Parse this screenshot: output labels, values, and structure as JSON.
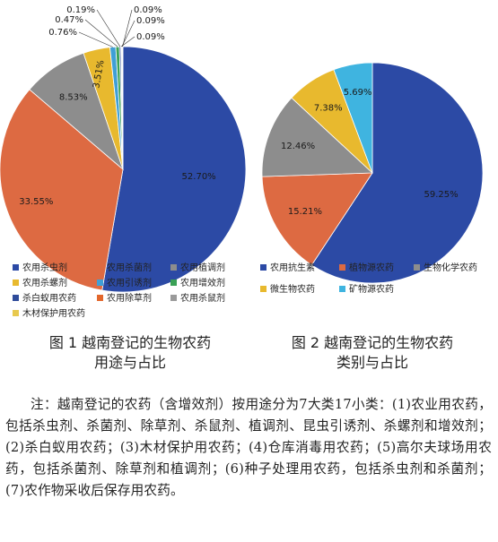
{
  "chart_data": [
    {
      "type": "pie",
      "title": "图 1 越南登记的生物农药",
      "subtitle": "用途与占比",
      "categories": [
        "农用杀虫剂",
        "农用杀菌剂",
        "农用植调剂",
        "农用杀螺剂",
        "农用引诱剂",
        "农用增效剂",
        "杀白蚁用农药",
        "农用除草剂",
        "农用杀鼠剂",
        "木材保护用农药"
      ],
      "values": [
        52.7,
        33.55,
        8.53,
        3.51,
        0.76,
        0.47,
        0.19,
        0.09,
        0.09,
        0.09
      ],
      "labels": [
        "52.70%",
        "33.55%",
        "8.53%",
        "3.51%",
        "0.76%",
        "0.47%",
        "0.19%",
        "0.09%",
        "0.09%",
        "0.09%"
      ],
      "colors": [
        "#2c4aa5",
        "#dd6a42",
        "#8d8d8d",
        "#e8b92e",
        "#3f9fd6",
        "#3aa156",
        "#2f4c9a",
        "#e3672c",
        "#9a9a9a",
        "#e8c94e"
      ],
      "legend_position": "bottom"
    },
    {
      "type": "pie",
      "title": "图 2 越南登记的生物农药",
      "subtitle": "类别与占比",
      "categories": [
        "农用抗生素",
        "植物源农药",
        "生物化学农药",
        "微生物农药",
        "矿物源农药"
      ],
      "values": [
        59.25,
        15.21,
        12.46,
        7.38,
        5.69
      ],
      "labels": [
        "59.25%",
        "15.21%",
        "12.46%",
        "7.38%",
        "5.69%"
      ],
      "colors": [
        "#2c4aa5",
        "#dd6a42",
        "#8d8d8d",
        "#e8b92e",
        "#3fb4e0"
      ],
      "legend_position": "bottom"
    }
  ],
  "note": "注：越南登记的农药（含增效剂）按用途分为7大类17小类：(1)农业用农药，包括杀虫剂、杀菌剂、除草剂、杀鼠剂、植调剂、昆虫引诱剂、杀螺剂和增效剂；(2)杀白蚁用农药；(3)木材保护用农药；(4)仓库消毒用农药；(5)高尔夫球场用农药，包括杀菌剂、除草剂和植调剂；(6)种子处理用农药，包括杀虫剂和杀菌剂；(7)农作物采收后保存用农药。"
}
